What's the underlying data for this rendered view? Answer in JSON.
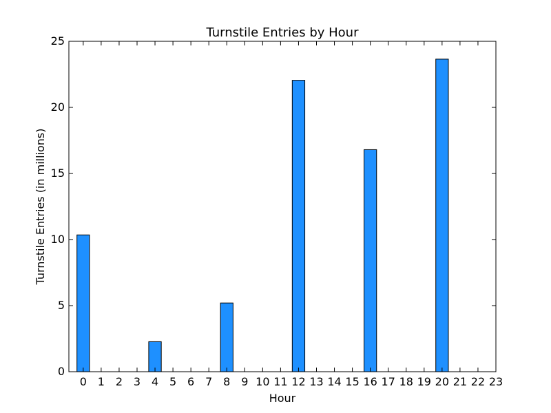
{
  "chart_data": {
    "type": "bar",
    "title": "Turnstile Entries by Hour",
    "xlabel": "Hour",
    "ylabel": "Turnstile Entries (in millions)",
    "categories": [
      "0",
      "1",
      "2",
      "3",
      "4",
      "5",
      "6",
      "7",
      "8",
      "9",
      "10",
      "11",
      "12",
      "13",
      "14",
      "15",
      "16",
      "17",
      "18",
      "19",
      "20",
      "21",
      "22",
      "23"
    ],
    "values": [
      10.35,
      0,
      0,
      0,
      2.27,
      0,
      0,
      0,
      5.2,
      0,
      0,
      0,
      22.05,
      0,
      0,
      0,
      16.8,
      0,
      0,
      0,
      23.65,
      0,
      0,
      0
    ],
    "ylim": [
      0,
      25
    ],
    "yticks": [
      "0",
      "5",
      "10",
      "15",
      "20",
      "25"
    ],
    "bar_color": "#1E90FF",
    "edge_color": "#000000",
    "grid": false
  }
}
